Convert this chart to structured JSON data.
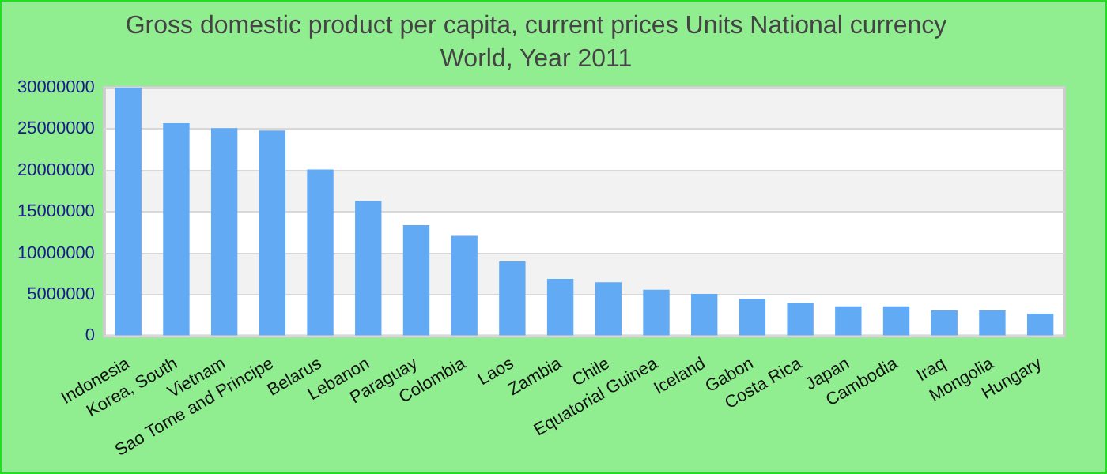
{
  "chart_data": {
    "type": "bar",
    "title": "Gross domestic product per capita, current prices Units National currency",
    "subtitle": "World, Year 2011",
    "categories": [
      "Indonesia",
      "Korea, South",
      "Vietnam",
      "Sao Tome and Principe",
      "Belarus",
      "Lebanon",
      "Paraguay",
      "Colombia",
      "Laos",
      "Zambia",
      "Chile",
      "Equatorial Guinea",
      "Iceland",
      "Gabon",
      "Costa Rica",
      "Japan",
      "Cambodia",
      "Iraq",
      "Mongolia",
      "Hungary"
    ],
    "values": [
      30000000,
      25700000,
      25100000,
      24800000,
      20100000,
      16300000,
      13400000,
      12100000,
      9000000,
      6900000,
      6500000,
      5600000,
      5100000,
      4500000,
      4000000,
      3600000,
      3600000,
      3100000,
      3100000,
      2700000
    ],
    "color": "#63aaf5",
    "ylim": [
      0,
      30000000
    ],
    "yticks": [
      0,
      5000000,
      10000000,
      15000000,
      20000000,
      25000000,
      30000000
    ],
    "grid": "y"
  }
}
